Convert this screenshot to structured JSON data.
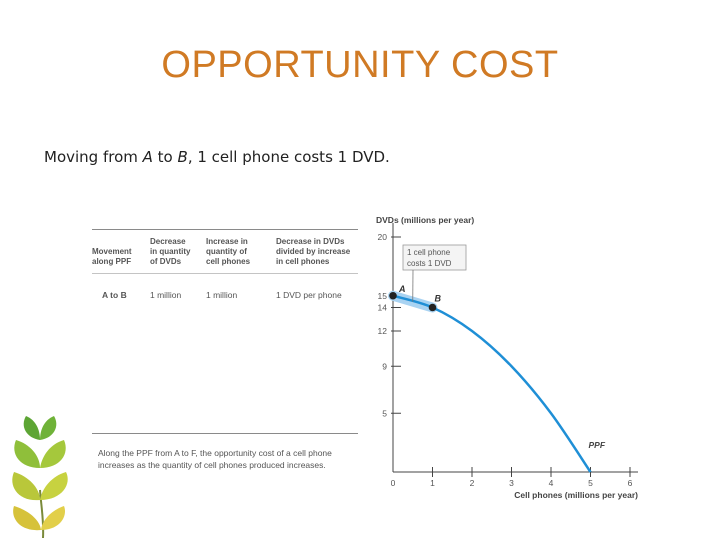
{
  "slide": {
    "title": "OPPORTUNITY COST",
    "body": {
      "prefix": "Moving from ",
      "from_point": "A",
      "middle": " to ",
      "to_point": "B",
      "suffix": ", 1 cell phone costs 1 DVD."
    }
  },
  "table": {
    "headers": [
      [
        "Movement",
        "along PPF"
      ],
      [
        "Decrease",
        "in quantity",
        "of DVDs"
      ],
      [
        "Increase in",
        "quantity of",
        "cell phones"
      ],
      [
        "Decrease in DVDs",
        "divided by increase",
        "in cell phones"
      ]
    ],
    "row": {
      "movement": "A to B",
      "decrease_dvds": "1 million",
      "increase_phones": "1 million",
      "ratio": "1 DVD per phone"
    },
    "note": {
      "line1": "Along the PPF from A to F, the opportunity cost of a cell phone",
      "line2": "increases as the quantity of cell phones produced increases."
    }
  },
  "colors": {
    "title": "#d07a24",
    "curve": "#1f8fd6",
    "highlight": "#a9d3f2",
    "point": "#222222"
  },
  "chart_data": {
    "type": "line",
    "xlabel": "Cell phones (millions per year)",
    "ylabel": "DVDs (millions per year)",
    "xlim": [
      0,
      6
    ],
    "ylim": [
      0,
      20
    ],
    "x_ticks": [
      0,
      1,
      2,
      3,
      4,
      5,
      6
    ],
    "y_ticks": [
      5,
      9,
      12,
      14,
      15,
      20
    ],
    "series": [
      {
        "name": "PPF",
        "x": [
          0,
          1,
          2,
          3,
          4,
          5
        ],
        "y": [
          15,
          14,
          12,
          9,
          5,
          0
        ]
      }
    ],
    "points": [
      {
        "label": "A",
        "x": 0,
        "y": 15
      },
      {
        "label": "B",
        "x": 1,
        "y": 14
      }
    ],
    "callout": {
      "line1": "1 cell phone",
      "line2": "costs 1 DVD"
    }
  }
}
